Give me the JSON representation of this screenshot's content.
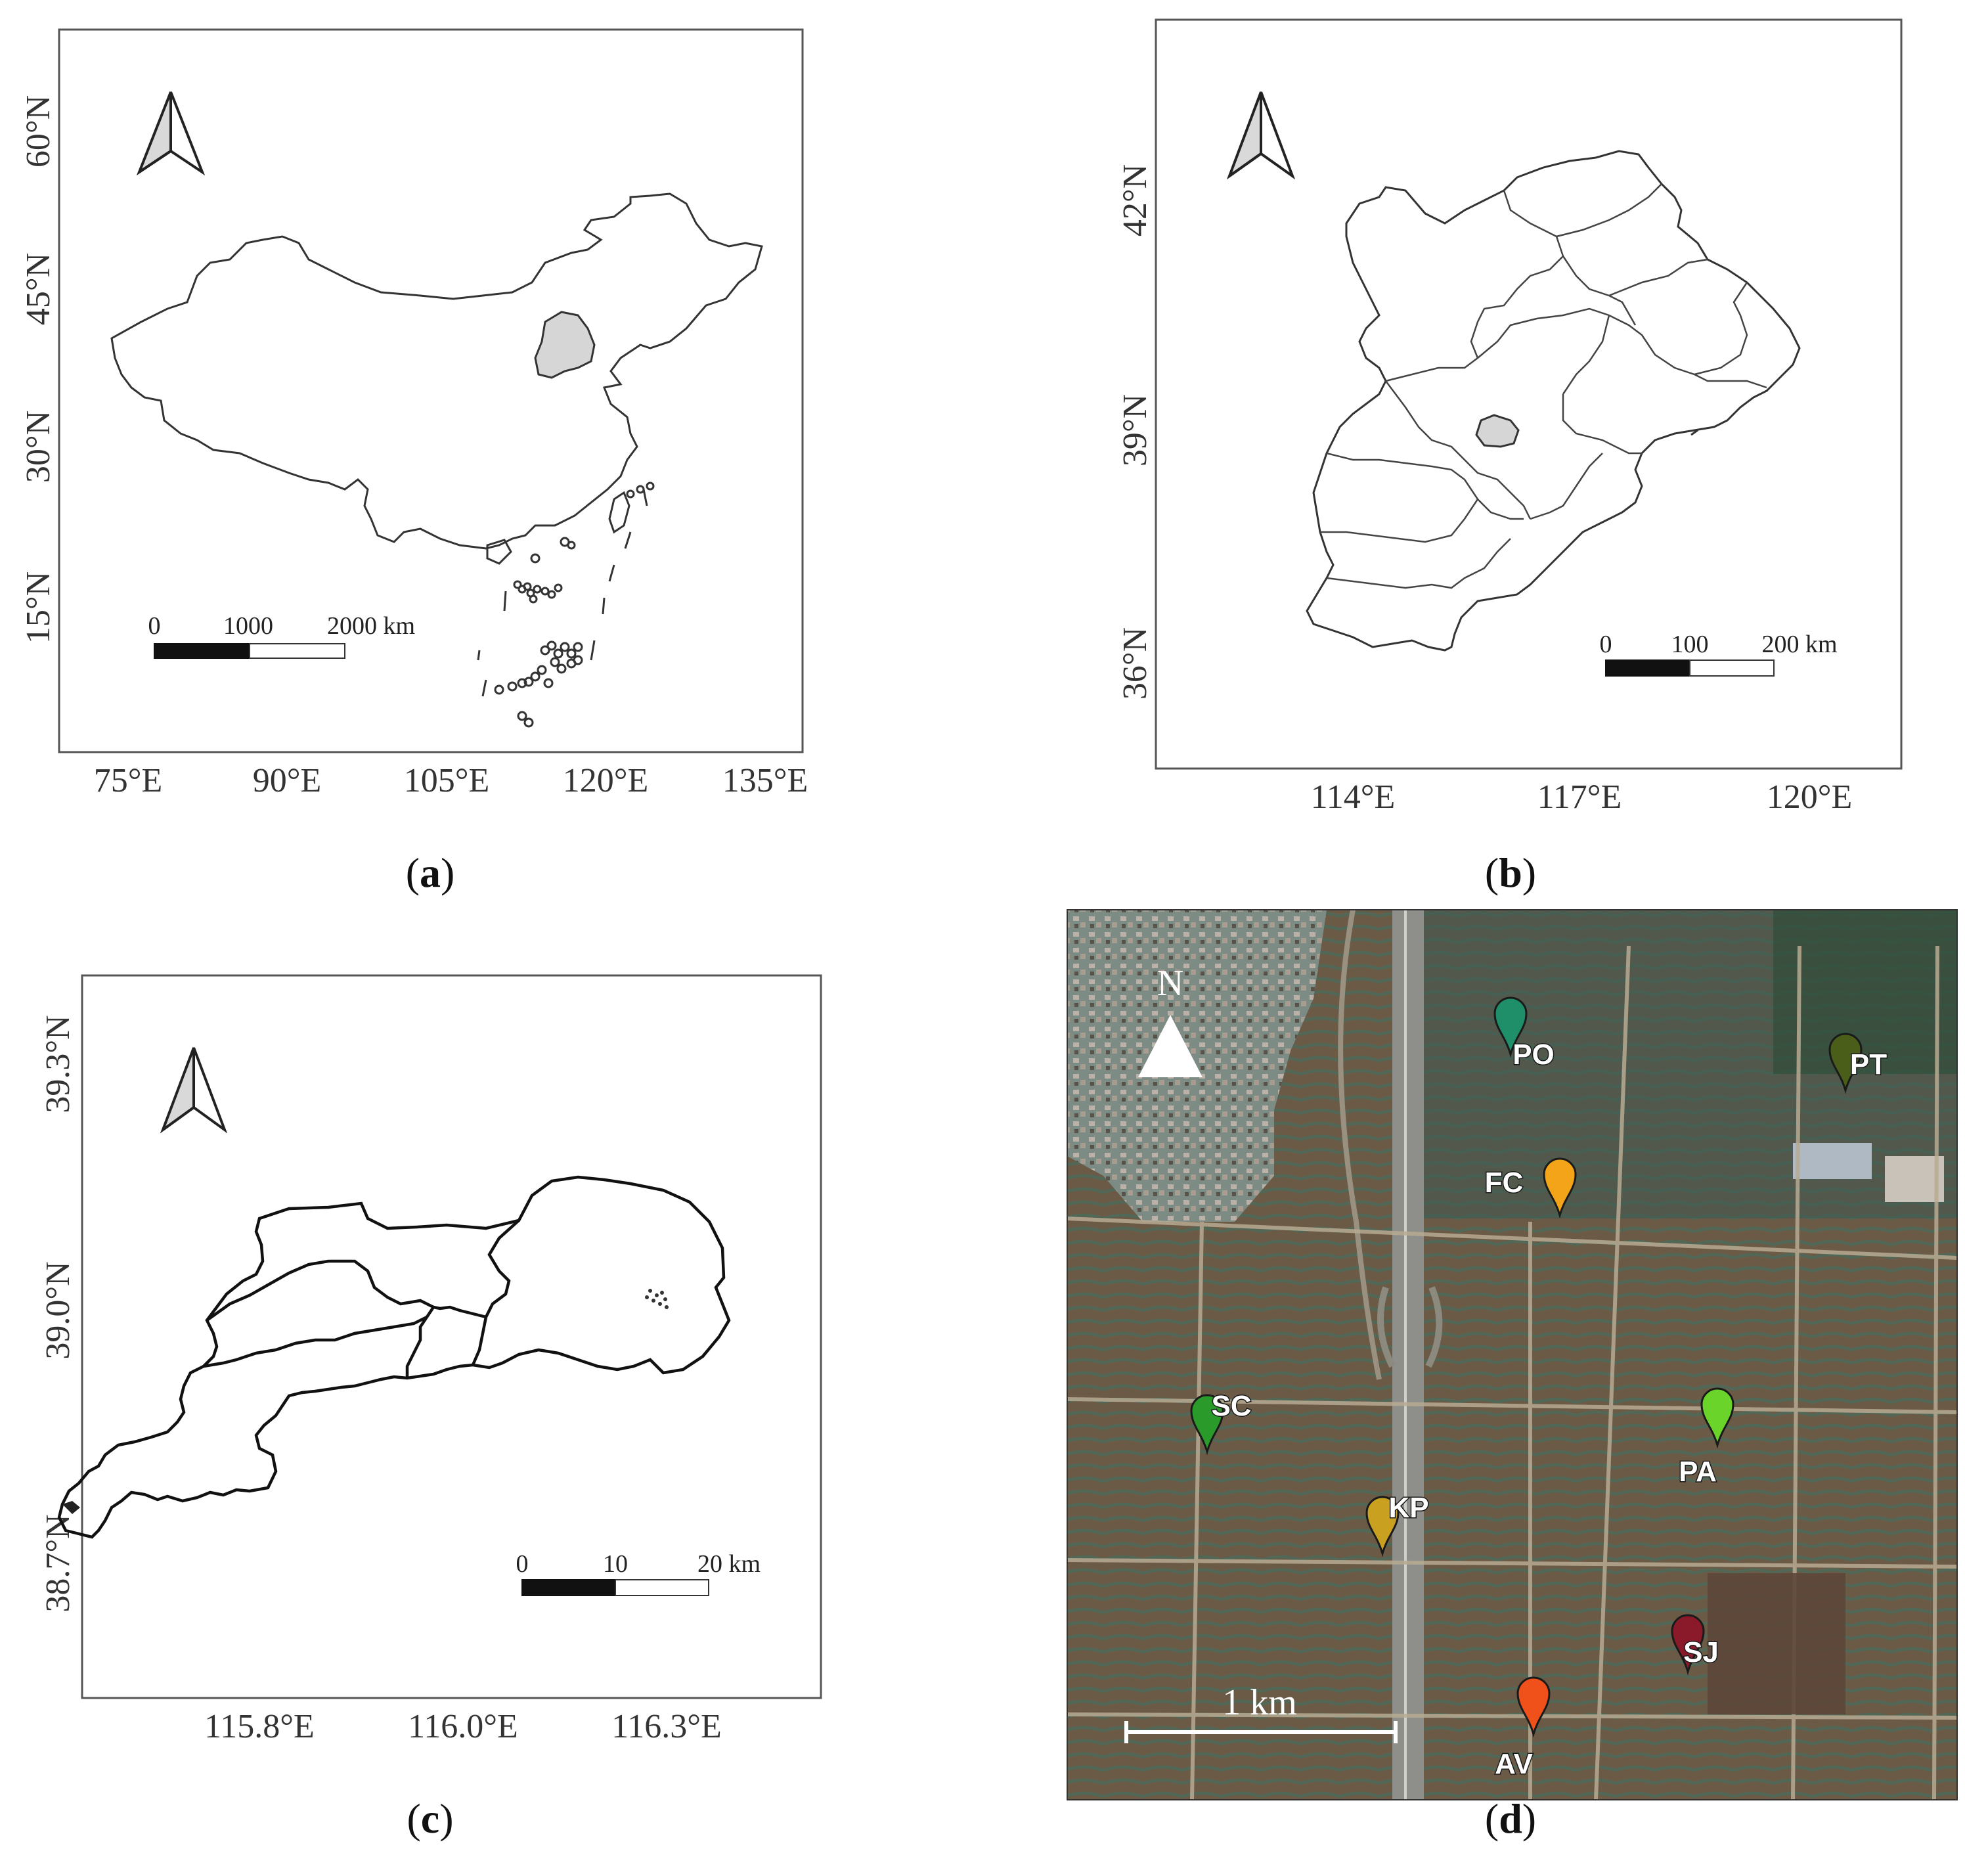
{
  "panels": {
    "a": {
      "caption_letter": "a",
      "y_ticks": [
        "60°N",
        "45°N",
        "30°N",
        "15°N"
      ],
      "x_ticks": [
        "75°E",
        "90°E",
        "105°E",
        "120°E",
        "135°E"
      ],
      "scale": {
        "t0": "0",
        "t1": "1000",
        "t2": "2000 km"
      },
      "north_arrow": "north-arrow-icon"
    },
    "b": {
      "caption_letter": "b",
      "y_ticks": [
        "42°N",
        "39°N",
        "36°N"
      ],
      "x_ticks": [
        "114°E",
        "117°E",
        "120°E"
      ],
      "scale": {
        "t0": "0",
        "t1": "100",
        "t2": "200 km"
      },
      "north_arrow": "north-arrow-icon"
    },
    "c": {
      "caption_letter": "c",
      "y_ticks": [
        "39.3°N",
        "39.0°N",
        "38.7°N"
      ],
      "x_ticks": [
        "115.8°E",
        "116.0°E",
        "116.3°E"
      ],
      "scale": {
        "t0": "0",
        "t1": "10",
        "t2": "20 km"
      },
      "north_arrow": "north-arrow-icon"
    },
    "d": {
      "caption_letter": "d",
      "north_label": "N",
      "scale_label": "1 km",
      "markers": [
        {
          "id": "PO",
          "label": "PO",
          "color": "#1f8f6a"
        },
        {
          "id": "PT",
          "label": "PT",
          "color": "#4a5e1a"
        },
        {
          "id": "FC",
          "label": "FC",
          "color": "#f4a418"
        },
        {
          "id": "SC",
          "label": "SC",
          "color": "#2a9a2a"
        },
        {
          "id": "PA",
          "label": "PA",
          "color": "#6ad42a"
        },
        {
          "id": "KP",
          "label": "KP",
          "color": "#c9a020"
        },
        {
          "id": "SJ",
          "label": "SJ",
          "color": "#8a1a2a"
        },
        {
          "id": "AV",
          "label": "AV",
          "color": "#f0501a"
        }
      ]
    }
  },
  "colors": {
    "highlight": "#d6d6d6",
    "outline": "#333333",
    "frame": "#555555"
  }
}
